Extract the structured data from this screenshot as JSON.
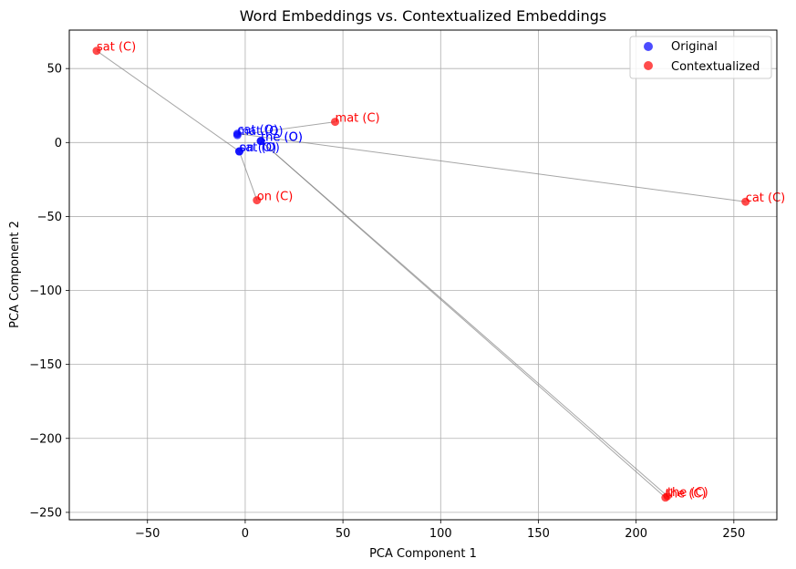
{
  "chart_data": {
    "type": "scatter",
    "title": "Word Embeddings vs. Contextualized Embeddings",
    "xlabel": "PCA Component 1",
    "ylabel": "PCA Component 2",
    "xlim": [
      -90,
      272
    ],
    "ylim": [
      -255,
      76
    ],
    "xticks": [
      -50,
      0,
      50,
      100,
      150,
      200,
      250
    ],
    "yticks": [
      50,
      0,
      -50,
      -100,
      -150,
      -200,
      -250
    ],
    "grid": true,
    "legend_position": "top-right",
    "series": [
      {
        "name": "Original",
        "color": "#0000ff",
        "points": [
          {
            "label": "cat (O)",
            "x": -4,
            "y": 6
          },
          {
            "label": "mat (O)",
            "x": -4,
            "y": 5
          },
          {
            "label": "the (O)",
            "x": 8,
            "y": 1
          },
          {
            "label": "the (O)",
            "x": 8,
            "y": 1
          },
          {
            "label": "sat (O)",
            "x": -3,
            "y": -6
          },
          {
            "label": "on (O)",
            "x": -3,
            "y": -6
          }
        ]
      },
      {
        "name": "Contextualized",
        "color": "#ff0000",
        "points": [
          {
            "label": "cat (C)",
            "x": 256,
            "y": -40
          },
          {
            "label": "mat (C)",
            "x": 46,
            "y": 14
          },
          {
            "label": "the (C)",
            "x": 215,
            "y": -240
          },
          {
            "label": "the (C)",
            "x": 216,
            "y": -239
          },
          {
            "label": "sat (C)",
            "x": -76,
            "y": 62
          },
          {
            "label": "on (C)",
            "x": 6,
            "y": -39
          }
        ]
      }
    ],
    "connections": [
      {
        "from": [
          -4,
          6
        ],
        "to": [
          256,
          -40
        ]
      },
      {
        "from": [
          -4,
          5
        ],
        "to": [
          46,
          14
        ]
      },
      {
        "from": [
          8,
          1
        ],
        "to": [
          215,
          -240
        ]
      },
      {
        "from": [
          8,
          1
        ],
        "to": [
          216,
          -239
        ]
      },
      {
        "from": [
          -3,
          -6
        ],
        "to": [
          -76,
          62
        ]
      },
      {
        "from": [
          -3,
          -6
        ],
        "to": [
          6,
          -39
        ]
      }
    ]
  }
}
